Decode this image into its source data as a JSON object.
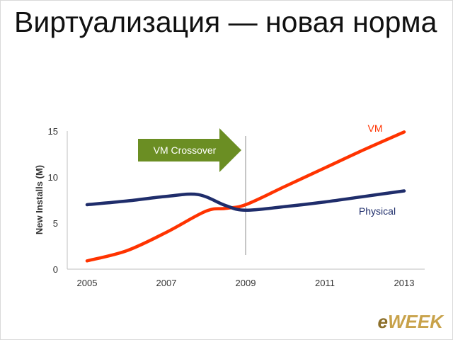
{
  "slide": {
    "title": "Виртуализация — новая норма",
    "logo_text": "eWEEK"
  },
  "chart_data": {
    "type": "line",
    "ylabel": "New Installs (M)",
    "xlim": [
      2005,
      2013
    ],
    "ylim": [
      0,
      15
    ],
    "x_ticks": [
      "2005",
      "2007",
      "2009",
      "2011",
      "2013"
    ],
    "y_ticks": [
      "0",
      "5",
      "10",
      "15"
    ],
    "series": [
      {
        "name": "VM",
        "color": "#ff3300",
        "x": [
          2005,
          2006,
          2007,
          2008,
          2008.5,
          2009,
          2010,
          2011,
          2012,
          2013
        ],
        "values": [
          0.9,
          2.0,
          4.0,
          6.3,
          6.6,
          7.0,
          9.0,
          11.0,
          13.0,
          14.9
        ]
      },
      {
        "name": "Physical",
        "color": "#1f2d6b",
        "x": [
          2005,
          2006,
          2007,
          2007.8,
          2008.5,
          2009,
          2010,
          2011,
          2012,
          2013
        ],
        "values": [
          7.0,
          7.4,
          7.9,
          8.1,
          6.9,
          6.4,
          6.8,
          7.3,
          7.9,
          8.5
        ]
      }
    ],
    "annotation": {
      "text": "VM Crossover",
      "color": "#6b8e23",
      "x_line": 2009
    },
    "grid": false
  }
}
